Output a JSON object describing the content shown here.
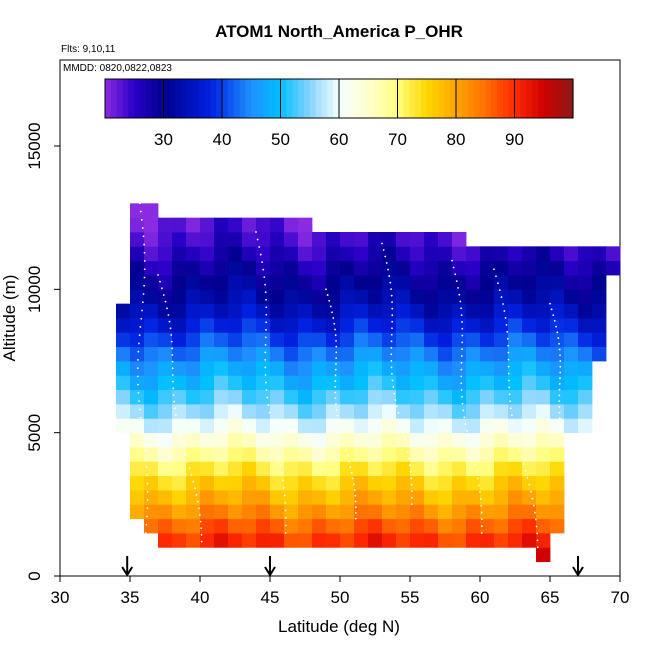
{
  "chart_data": {
    "type": "heatmap",
    "title": "ATOM1 North_America P_OHR",
    "subtitle_flights": "Flts: 9,10,11",
    "subtitle_dates": "MMDD: 0820,0822,0823",
    "xlabel": "Latitude (deg N)",
    "ylabel": "Altitude (m)",
    "xlim": [
      30,
      70
    ],
    "ylim": [
      0,
      18000
    ],
    "x_ticks": [
      30,
      35,
      40,
      45,
      50,
      55,
      60,
      65,
      70
    ],
    "y_ticks": [
      0,
      5000,
      10000,
      15000
    ],
    "colorbar": {
      "min": 20,
      "max": 100,
      "ticks": [
        30,
        40,
        50,
        60,
        70,
        80,
        90
      ],
      "stops": [
        {
          "v": 20,
          "c": "#8a2be2"
        },
        {
          "v": 25,
          "c": "#2a00c8"
        },
        {
          "v": 30,
          "c": "#00008c"
        },
        {
          "v": 38,
          "c": "#0020e0"
        },
        {
          "v": 45,
          "c": "#1e90ff"
        },
        {
          "v": 50,
          "c": "#00bfff"
        },
        {
          "v": 55,
          "c": "#87d3ff"
        },
        {
          "v": 60,
          "c": "#f4ffff"
        },
        {
          "v": 65,
          "c": "#fffed0"
        },
        {
          "v": 70,
          "c": "#ffff80"
        },
        {
          "v": 75,
          "c": "#ffd700"
        },
        {
          "v": 80,
          "c": "#ffa500"
        },
        {
          "v": 85,
          "c": "#ff7000"
        },
        {
          "v": 90,
          "c": "#ff2a00"
        },
        {
          "v": 95,
          "c": "#d00000"
        },
        {
          "v": 100,
          "c": "#8b1a1a"
        }
      ]
    },
    "profile": {
      "altitudes": [
        500,
        1500,
        2500,
        3500,
        4500,
        5500,
        6500,
        7500,
        8500,
        9500,
        10500,
        11500,
        12500
      ],
      "values": [
        94,
        88,
        80,
        74,
        66,
        58,
        51,
        46,
        39,
        33,
        29,
        25,
        22
      ]
    },
    "arrows_at_latitude": [
      34.8,
      45,
      67
    ]
  }
}
